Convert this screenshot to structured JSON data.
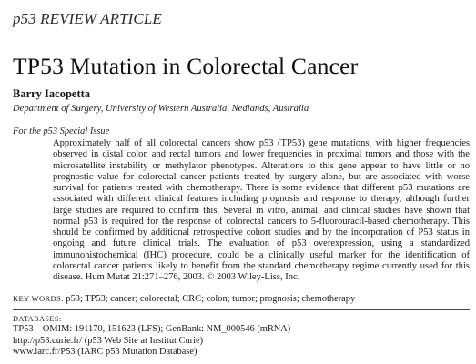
{
  "header": {
    "label": "p53 REVIEW ARTICLE"
  },
  "article": {
    "title": "TP53 Mutation in Colorectal Cancer",
    "author": "Barry Iacopetta",
    "affiliation": "Department of Surgery, University of Western Australia, Nedlands, Australia",
    "special_issue": "For the p53 Special Issue"
  },
  "abstract": {
    "lines": [
      "Approximately half of all colorectal cancers show p53 (TP53) gene mutations, with higher frequencies",
      "observed in distal colon and rectal tumors and lower frequencies in proximal tumors and those with the",
      "microsatellite instability or methylator phenotypes. Alterations to this gene appear to have little or no",
      "prognostic value for colorectal cancer patients treated by surgery alone, but are associated with worse",
      "survival for patients treated with chemotherapy. There is some evidence that different p53 mutations are",
      "associated with different clinical features including prognosis and response to therapy, although further",
      "large studies are required to confirm this. Several in vitro, animal, and clinical studies have shown that",
      "normal p53 is required for the response of colorectal cancers to 5-fluorouracil-based chemotherapy. This",
      "should be confirmed by additional retrospective cohort studies and by the incorporation of P53 status in",
      "ongoing and future clinical trials. The evaluation of p53 overexpression, using a standardized",
      "immunohistochemical (IHC) procedure, could be a clinically useful marker for the identification of",
      "colorectal cancer patients likely to benefit from the standard chemotherapy regime currently used for this",
      "disease. Hum Mutat 21:271–276, 2003.  © 2003 Wiley-Liss, Inc."
    ]
  },
  "keywords": {
    "label": "KEY WORDS:",
    "text": "p53; TP53; cancer; colorectal; CRC; colon; tumor; prognosis; chemotherapy"
  },
  "databases": {
    "heading": "DATABASES:",
    "lines": [
      "TP53 – OMIM: 191170, 151623 (LFS); GenBank: NM_000546 (mRNA)",
      "http://p53.curie.fr/ (p53 Web Site at Institut Curie)",
      "www.iarc.fr/P53 (IARC p53 Mutation Database)"
    ]
  }
}
